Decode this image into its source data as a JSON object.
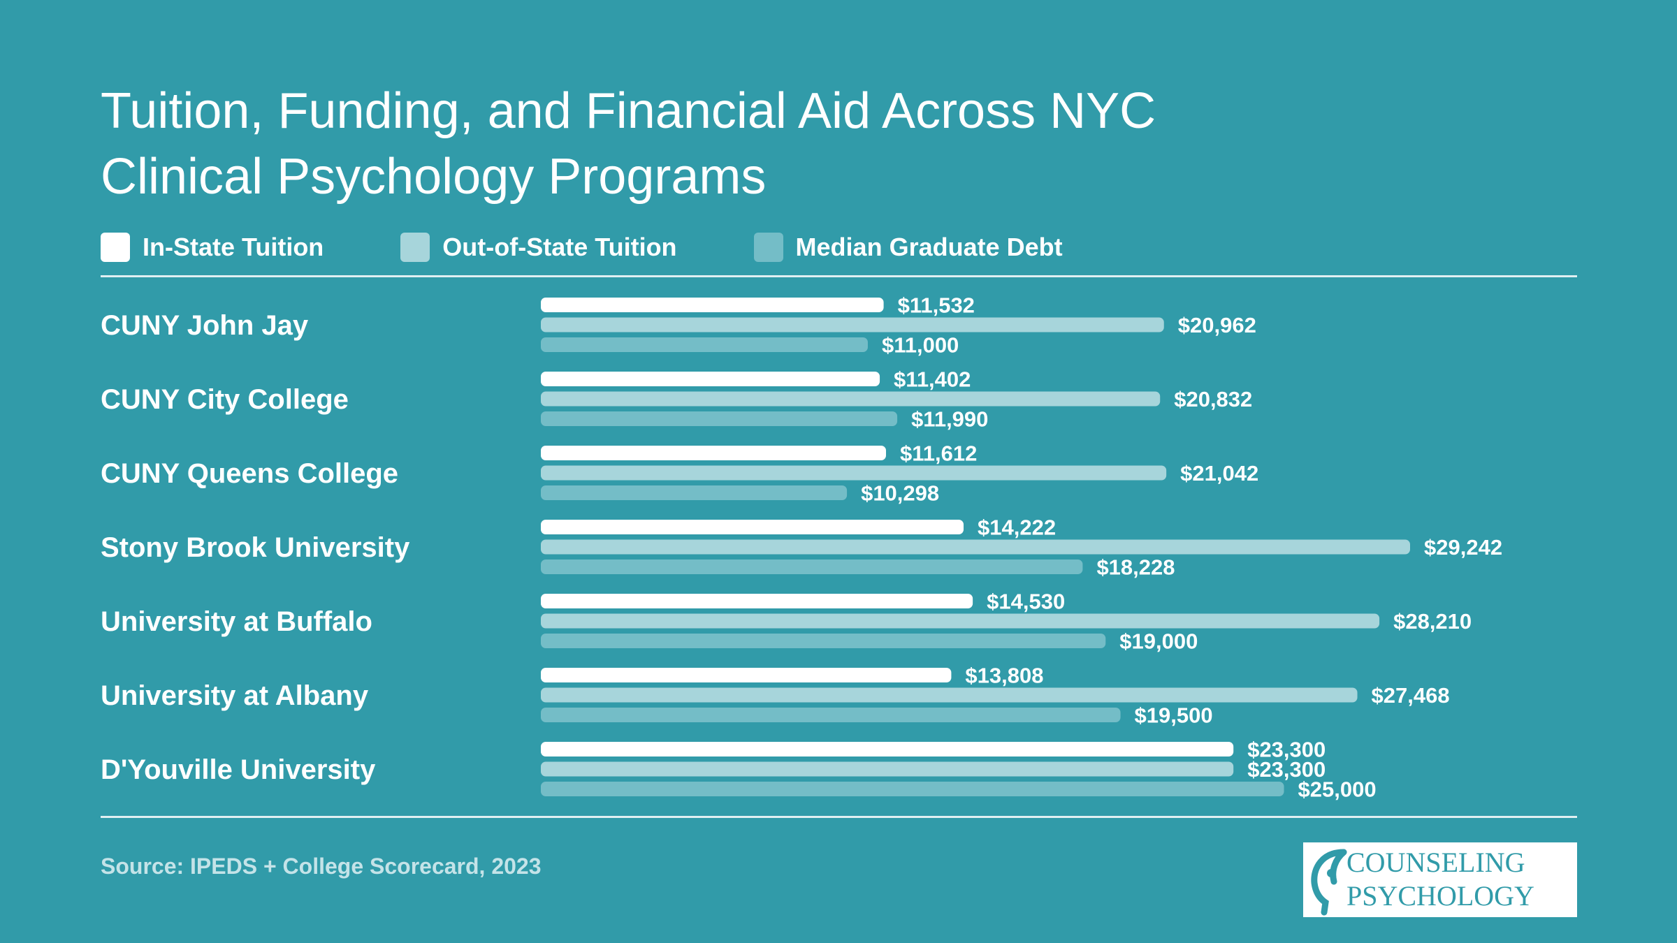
{
  "title_lines": [
    "Tuition, Funding, and Financial Aid Across NYC",
    "Clinical Psychology Programs"
  ],
  "source": "Source: IPEDS + College Scorecard, 2023",
  "logo": {
    "line1": "COUNSELING",
    "line2": "PSYCHOLOGY"
  },
  "colors": {
    "background": "#319BA9",
    "in_state": "#FFFFFF",
    "out_of_state": "#A7D5DB",
    "median_debt": "#74BDC7"
  },
  "chart_data": {
    "type": "bar",
    "orientation": "horizontal",
    "categories": [
      "CUNY John Jay",
      "CUNY City College",
      "CUNY Queens College",
      "Stony Brook University",
      "University at Buffalo",
      "University at Albany",
      "D'Youville University"
    ],
    "series": [
      {
        "name": "In-State Tuition",
        "values": [
          11532,
          11402,
          11612,
          14222,
          14530,
          13808,
          23300
        ],
        "labels": [
          "$11,532",
          "$11,402",
          "$11,612",
          "$14,222",
          "$14,530",
          "$13,808",
          "$23,300"
        ]
      },
      {
        "name": "Out-of-State Tuition",
        "values": [
          20962,
          20832,
          21042,
          29242,
          28210,
          27468,
          23300
        ],
        "labels": [
          "$20,962",
          "$20,832",
          "$21,042",
          "$29,242",
          "$28,210",
          "$27,468",
          "$23,300"
        ]
      },
      {
        "name": "Median Graduate Debt",
        "values": [
          11000,
          11990,
          10298,
          18228,
          19000,
          19500,
          25000
        ],
        "labels": [
          "$11,000",
          "$11,990",
          "$10,298",
          "$18,228",
          "$19,000",
          "$19,500",
          "$25,000"
        ]
      }
    ],
    "legend": "top-left",
    "grid": false
  }
}
